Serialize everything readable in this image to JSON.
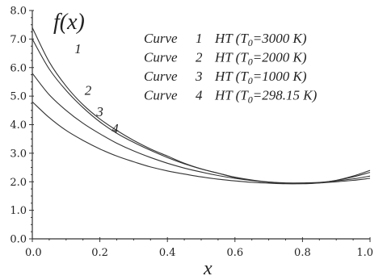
{
  "chart_data": {
    "type": "line",
    "ylabel": "f(x)",
    "xlabel": "x",
    "xlim": [
      0.0,
      1.0
    ],
    "ylim": [
      0.0,
      8.0
    ],
    "x_ticks": [
      "0.0",
      "0.2",
      "0.4",
      "0.6",
      "0.8",
      "1.0"
    ],
    "y_ticks": [
      "0.0",
      "1.0",
      "2.0",
      "3.0",
      "4.0",
      "5.0",
      "6.0",
      "7.0",
      "8.0"
    ],
    "grid": false,
    "legend_position": "top-right",
    "legend": [
      {
        "prefix": "Curve",
        "number": "1",
        "text": "HT (T",
        "sub": "0",
        "value": "=3000 K)"
      },
      {
        "prefix": "Curve",
        "number": "2",
        "text": "HT (T",
        "sub": "0",
        "value": "=2000 K)"
      },
      {
        "prefix": "Curve",
        "number": "3",
        "text": "HT (T",
        "sub": "0",
        "value": "=1000 K)"
      },
      {
        "prefix": "Curve",
        "number": "4",
        "text": "HT (T",
        "sub": "0",
        "value": "=298.15 K)"
      }
    ],
    "series": [
      {
        "label": "1",
        "label_at": [
          0.125,
          6.5
        ],
        "x": [
          0.0,
          0.05,
          0.1,
          0.15,
          0.2,
          0.25,
          0.3,
          0.35,
          0.4,
          0.45,
          0.5,
          0.55,
          0.6,
          0.65,
          0.7,
          0.75,
          0.8,
          0.85,
          0.9,
          0.95,
          1.0
        ],
        "y": [
          7.4,
          6.2,
          5.35,
          4.7,
          4.2,
          3.8,
          3.45,
          3.15,
          2.9,
          2.65,
          2.45,
          2.3,
          2.15,
          2.05,
          1.98,
          1.94,
          1.93,
          1.96,
          2.05,
          2.2,
          2.4
        ]
      },
      {
        "label": "2",
        "label_at": [
          0.155,
          5.05
        ],
        "x": [
          0.0,
          0.05,
          0.1,
          0.15,
          0.2,
          0.25,
          0.3,
          0.35,
          0.4,
          0.45,
          0.5,
          0.55,
          0.6,
          0.65,
          0.7,
          0.75,
          0.8,
          0.85,
          0.9,
          0.95,
          1.0
        ],
        "y": [
          7.0,
          5.95,
          5.2,
          4.6,
          4.1,
          3.7,
          3.38,
          3.1,
          2.85,
          2.63,
          2.45,
          2.3,
          2.16,
          2.06,
          1.99,
          1.95,
          1.94,
          1.97,
          2.05,
          2.17,
          2.33
        ]
      },
      {
        "label": "3",
        "label_at": [
          0.19,
          4.3
        ],
        "x": [
          0.0,
          0.05,
          0.1,
          0.15,
          0.2,
          0.25,
          0.3,
          0.35,
          0.4,
          0.45,
          0.5,
          0.55,
          0.6,
          0.65,
          0.7,
          0.75,
          0.8,
          0.85,
          0.9,
          0.95,
          1.0
        ],
        "y": [
          5.8,
          5.05,
          4.5,
          4.05,
          3.68,
          3.35,
          3.08,
          2.85,
          2.65,
          2.48,
          2.34,
          2.22,
          2.12,
          2.04,
          1.99,
          1.96,
          1.96,
          1.98,
          2.03,
          2.1,
          2.2
        ]
      },
      {
        "label": "4",
        "label_at": [
          0.235,
          3.7
        ],
        "x": [
          0.0,
          0.05,
          0.1,
          0.15,
          0.2,
          0.25,
          0.3,
          0.35,
          0.4,
          0.45,
          0.5,
          0.55,
          0.6,
          0.65,
          0.7,
          0.75,
          0.8,
          0.85,
          0.9,
          0.95,
          1.0
        ],
        "y": [
          4.8,
          4.25,
          3.8,
          3.45,
          3.15,
          2.9,
          2.7,
          2.52,
          2.38,
          2.27,
          2.17,
          2.09,
          2.03,
          1.98,
          1.95,
          1.93,
          1.94,
          1.96,
          2.0,
          2.05,
          2.12
        ]
      }
    ]
  }
}
